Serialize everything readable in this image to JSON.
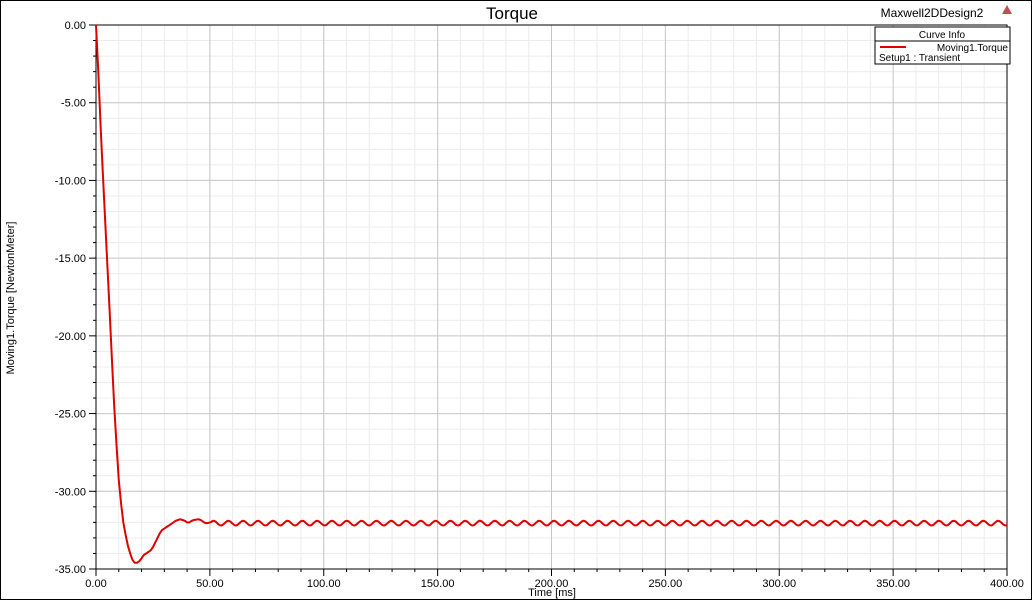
{
  "chart_data": {
    "type": "line",
    "title": "Torque",
    "design_name": "Maxwell2DDesign2",
    "xlabel": "Time [ms]",
    "ylabel": "Moving1.Torque [NewtonMeter]",
    "xlim": [
      0,
      400
    ],
    "ylim": [
      -35,
      0
    ],
    "x_ticks": [
      "0.00",
      "50.00",
      "100.00",
      "150.00",
      "200.00",
      "250.00",
      "300.00",
      "350.00",
      "400.00"
    ],
    "y_ticks": [
      "0.00",
      "-5.00",
      "-10.00",
      "-15.00",
      "-20.00",
      "-25.00",
      "-30.00",
      "-35.00"
    ],
    "grid": true,
    "legend": {
      "title": "Curve Info",
      "placement": "top-right",
      "entries": [
        {
          "name": "Moving1.Torque",
          "sub": "Setup1 : Transient",
          "color": "#e00000"
        }
      ]
    },
    "series": [
      {
        "name": "Moving1.Torque",
        "color": "#e00000",
        "points": [
          [
            0,
            0
          ],
          [
            1,
            -3
          ],
          [
            2,
            -6.5
          ],
          [
            3,
            -9.5
          ],
          [
            4,
            -12.5
          ],
          [
            5,
            -15.5
          ],
          [
            6,
            -18.5
          ],
          [
            7,
            -21.5
          ],
          [
            8,
            -24.5
          ],
          [
            9,
            -27
          ],
          [
            10,
            -29.3
          ],
          [
            11,
            -30.8
          ],
          [
            12,
            -32
          ],
          [
            13,
            -32.8
          ],
          [
            14,
            -33.5
          ],
          [
            15,
            -34
          ],
          [
            16,
            -34.4
          ],
          [
            17,
            -34.6
          ],
          [
            18,
            -34.6
          ],
          [
            19,
            -34.5
          ],
          [
            20,
            -34.3
          ],
          [
            21,
            -34.1
          ],
          [
            22,
            -34
          ],
          [
            23,
            -33.9
          ],
          [
            24,
            -33.8
          ],
          [
            25,
            -33.6
          ],
          [
            26,
            -33.3
          ],
          [
            27,
            -33
          ],
          [
            28,
            -32.7
          ],
          [
            29,
            -32.5
          ],
          [
            30,
            -32.4
          ],
          [
            31,
            -32.3
          ],
          [
            32,
            -32.2
          ],
          [
            33,
            -32.1
          ],
          [
            34,
            -32
          ],
          [
            35,
            -31.9
          ],
          [
            36,
            -31.85
          ],
          [
            37,
            -31.8
          ],
          [
            38,
            -31.85
          ],
          [
            39,
            -31.9
          ],
          [
            40,
            -32
          ],
          [
            41,
            -32
          ],
          [
            42,
            -31.9
          ],
          [
            43,
            -31.85
          ],
          [
            44,
            -31.82
          ],
          [
            45,
            -31.8
          ],
          [
            46,
            -31.85
          ],
          [
            47,
            -31.95
          ],
          [
            48,
            -32.05
          ],
          [
            49,
            -32.05
          ],
          [
            50,
            -32
          ]
        ],
        "steady_state": {
          "x_start": 50,
          "x_end": 400,
          "mean": -32.05,
          "amplitude": 0.15,
          "period": 6.5
        }
      }
    ]
  }
}
